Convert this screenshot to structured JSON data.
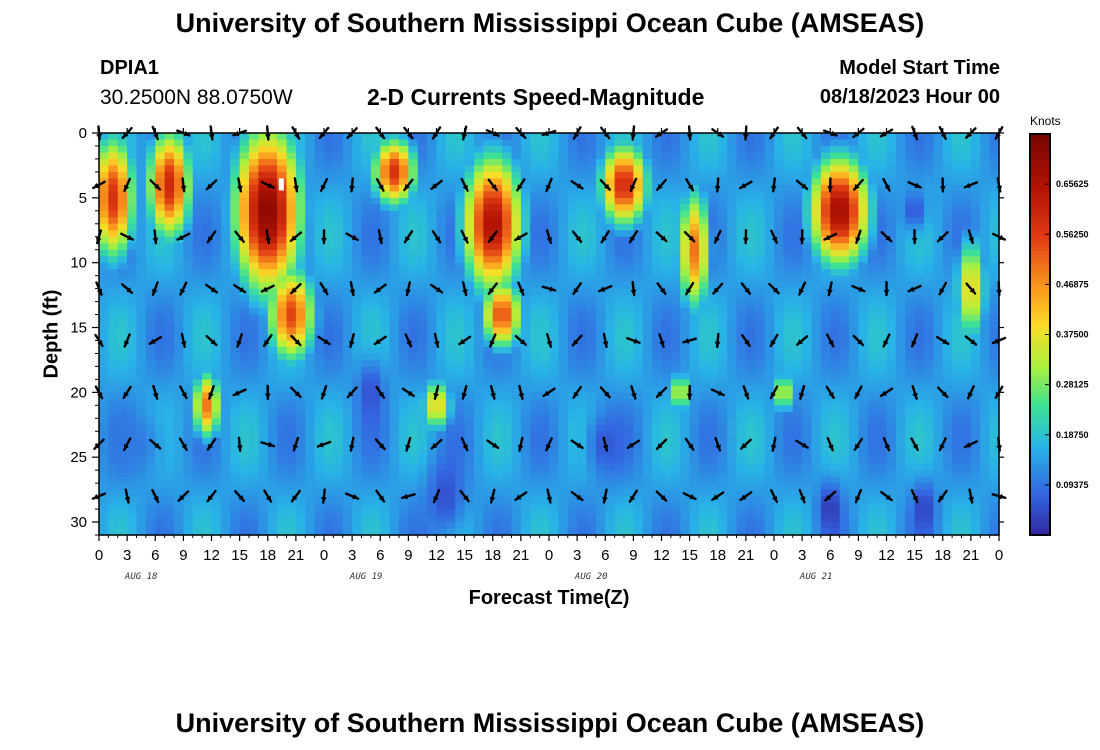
{
  "header": {
    "title": "University of Southern Mississippi Ocean Cube (AMSEAS)",
    "station": "DPIA1",
    "coords": "30.2500N  88.0750W",
    "subtitle": "2-D Currents Speed-Magnitude",
    "model_start_label": "Model Start Time",
    "model_start_time": "08/18/2023 Hour 00"
  },
  "footer": {
    "title": "University of Southern Mississippi Ocean Cube (AMSEAS)"
  },
  "colors": {
    "background": "#ffffff",
    "arrow": "#000000",
    "marker": "#ffffff"
  },
  "chart_data": {
    "type": "heatmap",
    "title": "2-D Currents Speed-Magnitude",
    "xlabel": "Forecast Time(Z)",
    "ylabel": "Depth (ft)",
    "x_tick_labels": [
      "0",
      "3",
      "6",
      "9",
      "12",
      "15",
      "18",
      "21",
      "0",
      "3",
      "6",
      "9",
      "12",
      "15",
      "18",
      "21",
      "0",
      "3",
      "6",
      "9",
      "12",
      "15",
      "18",
      "21",
      "0",
      "3",
      "6",
      "9",
      "12",
      "15",
      "18",
      "21",
      "0"
    ],
    "day_labels": [
      "AUG 18",
      "AUG 19",
      "AUG 20",
      "AUG 21"
    ],
    "y_ticks": [
      0,
      5,
      10,
      15,
      20,
      25,
      30
    ],
    "xlim_hours": [
      0,
      96
    ],
    "ylim_ft": [
      0,
      31
    ],
    "colorbar": {
      "title": "Knots",
      "ticks": [
        "0.65625",
        "0.56250",
        "0.46875",
        "0.37500",
        "0.28125",
        "0.18750",
        "0.09375"
      ],
      "range": [
        0.0,
        0.75
      ]
    },
    "grid": "off",
    "arrow_hours_step": 3,
    "arrow_depths_ft": [
      0,
      4,
      8,
      12,
      16,
      20,
      24,
      28
    ],
    "hot_blobs": [
      {
        "hour": 1.5,
        "depth": 5,
        "w_h": 2.2,
        "h_ft": 9,
        "value": 0.58
      },
      {
        "hour": 7.5,
        "depth": 4,
        "w_h": 2.2,
        "h_ft": 8,
        "value": 0.6
      },
      {
        "hour": 18,
        "depth": 6,
        "w_h": 3.4,
        "h_ft": 12,
        "value": 0.72
      },
      {
        "hour": 20.5,
        "depth": 14,
        "w_h": 2.4,
        "h_ft": 7,
        "value": 0.55
      },
      {
        "hour": 11.5,
        "depth": 21,
        "w_h": 1.4,
        "h_ft": 5,
        "value": 0.5
      },
      {
        "hour": 31.5,
        "depth": 3,
        "w_h": 2.2,
        "h_ft": 5,
        "value": 0.58
      },
      {
        "hour": 42,
        "depth": 7,
        "w_h": 3.0,
        "h_ft": 10,
        "value": 0.66
      },
      {
        "hour": 43,
        "depth": 14,
        "w_h": 2.0,
        "h_ft": 5,
        "value": 0.55
      },
      {
        "hour": 36,
        "depth": 21,
        "w_h": 1.6,
        "h_ft": 4,
        "value": 0.4
      },
      {
        "hour": 56,
        "depth": 4,
        "w_h": 2.4,
        "h_ft": 6,
        "value": 0.6
      },
      {
        "hour": 63.5,
        "depth": 9,
        "w_h": 1.6,
        "h_ft": 9,
        "value": 0.5
      },
      {
        "hour": 62,
        "depth": 20,
        "w_h": 1.0,
        "h_ft": 3,
        "value": 0.38
      },
      {
        "hour": 73,
        "depth": 20,
        "w_h": 1.0,
        "h_ft": 3,
        "value": 0.38
      },
      {
        "hour": 79,
        "depth": 6,
        "w_h": 3.0,
        "h_ft": 8,
        "value": 0.68
      },
      {
        "hour": 93,
        "depth": 12,
        "w_h": 1.6,
        "h_ft": 8,
        "value": 0.4
      }
    ],
    "cold_blobs": [
      {
        "hour": 29,
        "depth": 20,
        "w_h": 1.4,
        "h_ft": 5,
        "value": 0.05
      },
      {
        "hour": 37,
        "depth": 28,
        "w_h": 2.0,
        "h_ft": 6,
        "value": 0.05
      },
      {
        "hour": 78,
        "depth": 29,
        "w_h": 1.2,
        "h_ft": 4,
        "value": 0.02
      },
      {
        "hour": 87,
        "depth": 6,
        "w_h": 1.2,
        "h_ft": 3,
        "value": 0.05
      },
      {
        "hour": 88,
        "depth": 29,
        "w_h": 1.2,
        "h_ft": 4,
        "value": 0.03
      },
      {
        "hour": 54,
        "depth": 24,
        "w_h": 2.0,
        "h_ft": 5,
        "value": 0.06
      },
      {
        "hour": 4,
        "depth": 24,
        "w_h": 3.0,
        "h_ft": 5,
        "value": 0.1
      }
    ]
  }
}
